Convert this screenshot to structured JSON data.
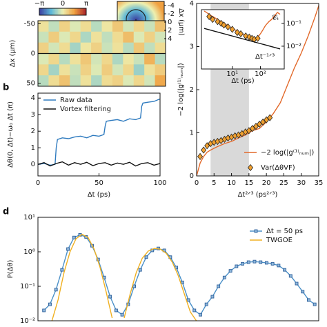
{
  "chart_data": [
    {
      "type": "heatmap",
      "ylabel": "Δx (μm)",
      "ylim": [
        -55,
        55
      ],
      "yticks": [
        -50,
        0,
        50
      ],
      "colorbar_ticks": [
        {
          "value": -3.1416,
          "label": "−π"
        },
        {
          "value": 0,
          "label": "0"
        },
        {
          "value": 3.1416,
          "label": "π"
        }
      ],
      "values": [
        [
          0.3,
          -0.5,
          0.6,
          -0.2,
          0.4,
          -0.6,
          0.2,
          0.8,
          -0.3,
          0.5,
          -0.4,
          0.9
        ],
        [
          -0.4,
          0.7,
          -0.2,
          0.5,
          -0.7,
          0.3,
          -0.5,
          0.4,
          1.0,
          -0.2,
          0.6,
          -0.3
        ],
        [
          0.6,
          -0.3,
          0.4,
          -0.8,
          0.2,
          0.6,
          -0.4,
          0.3,
          -0.6,
          0.8,
          -0.5,
          0.4
        ],
        [
          -0.2,
          0.5,
          -0.6,
          0.3,
          0.8,
          -0.3,
          0.5,
          -0.7,
          0.2,
          -0.4,
          1.2,
          -0.6
        ],
        [
          0.5,
          -0.8,
          0.3,
          -0.4,
          0.6,
          -0.2,
          0.7,
          -0.3,
          0.5,
          -0.9,
          0.3,
          0.7
        ],
        [
          -0.6,
          0.4,
          0.9,
          -0.5,
          0.3,
          -0.7,
          0.4,
          0.6,
          -0.2,
          0.5,
          -0.3,
          1.4
        ]
      ],
      "inset": {
        "ylabel": "Δx (μm)",
        "yticks": [
          -4,
          -2,
          0,
          2,
          4
        ]
      }
    },
    {
      "type": "line",
      "panel_label": "b",
      "xlabel": "Δt (ps)",
      "ylabel": "Δθ(0, Δt)−ω₀ Δt (π)",
      "xlim": [
        0,
        100
      ],
      "xticks": [
        0,
        50,
        100
      ],
      "ylim": [
        -0.7,
        4.3
      ],
      "yticks": [
        0,
        1,
        2,
        3,
        4
      ],
      "legend": "upper left",
      "series": [
        {
          "name": "Raw data",
          "color": "#2f7bbf",
          "kind": "line",
          "x": [
            0,
            5,
            10,
            14,
            15,
            16,
            20,
            25,
            30,
            35,
            40,
            45,
            50,
            54,
            55,
            56,
            60,
            65,
            70,
            75,
            80,
            84,
            85,
            86,
            90,
            95,
            100
          ],
          "values": [
            0,
            0.05,
            -0.05,
            0,
            1.0,
            1.5,
            1.6,
            1.55,
            1.65,
            1.7,
            1.6,
            1.75,
            1.7,
            1.8,
            2.3,
            2.6,
            2.65,
            2.7,
            2.6,
            2.75,
            2.7,
            2.8,
            3.5,
            3.7,
            3.75,
            3.8,
            3.95
          ]
        },
        {
          "name": "Vortex filtering",
          "color": "#111111",
          "kind": "line",
          "x": [
            0,
            5,
            10,
            15,
            20,
            25,
            30,
            35,
            40,
            45,
            50,
            55,
            60,
            65,
            70,
            75,
            80,
            85,
            90,
            95,
            100
          ],
          "values": [
            0,
            0.1,
            -0.1,
            0.05,
            0.15,
            -0.05,
            0.1,
            0,
            0.12,
            -0.08,
            0.05,
            0.1,
            -0.05,
            0.08,
            0,
            0.12,
            -0.1,
            0.05,
            0.1,
            -0.05,
            0.05
          ]
        }
      ]
    },
    {
      "type": "line",
      "xlabel": "Δt²ᐟ³ (ps²ᐟ³)",
      "ylabel": "−2 log(|g⁽¹⁾ₙᵤₘ|)",
      "xlim": [
        0,
        35
      ],
      "xticks": [
        0,
        5,
        10,
        15,
        20,
        25,
        30,
        35
      ],
      "ylim": [
        0,
        4
      ],
      "yticks": [
        0,
        1,
        2,
        3,
        4
      ],
      "shaded_span": [
        4,
        15
      ],
      "legend": "lower right",
      "series": [
        {
          "name": "−2 log(|g⁽¹⁾ₙᵤₘ|)",
          "color": "#e2692a",
          "kind": "line",
          "x": [
            0,
            1,
            2,
            3,
            4,
            6,
            8,
            10,
            12,
            14,
            16,
            18,
            20,
            22,
            24,
            26,
            28,
            30,
            32,
            34,
            35
          ],
          "values": [
            0,
            0.3,
            0.45,
            0.55,
            0.6,
            0.68,
            0.75,
            0.8,
            0.88,
            0.95,
            1.05,
            1.1,
            1.25,
            1.45,
            1.7,
            2.1,
            2.5,
            2.85,
            3.25,
            3.7,
            3.95
          ]
        },
        {
          "name": "Var(ΔθVF)",
          "color": "#f0a030",
          "kind": "scatter",
          "marker": "diamond",
          "x": [
            1,
            2,
            3,
            4,
            5,
            6,
            7,
            8,
            9,
            10,
            11,
            12,
            13,
            14,
            15,
            16,
            17,
            18,
            19,
            20,
            21
          ],
          "values": [
            0.45,
            0.6,
            0.7,
            0.75,
            0.78,
            0.8,
            0.82,
            0.85,
            0.88,
            0.9,
            0.93,
            0.95,
            0.98,
            1.02,
            1.05,
            1.1,
            1.15,
            1.2,
            1.25,
            1.3,
            1.35
          ]
        }
      ]
    },
    {
      "type": "line",
      "xscale": "log",
      "yscale": "log",
      "yaxis_side": "right",
      "xlabel": "Δt (ps)",
      "xlim": [
        0.8,
        700
      ],
      "xticks": [
        {
          "value": 10,
          "label": "10¹"
        },
        {
          "value": 100,
          "label": "10²"
        }
      ],
      "ylim": [
        0.001,
        0.4
      ],
      "yticks": [
        {
          "value": 0.1,
          "label": "10⁻¹"
        },
        {
          "value": 0.01,
          "label": "10⁻²"
        }
      ],
      "annotations": [
        "𝒞ₜ",
        "Δt⁻¹ᐟ³"
      ],
      "series": [
        {
          "color": "#e2692a",
          "kind": "line",
          "x": [
            1,
            2,
            3,
            5,
            7,
            10,
            15,
            20,
            30,
            40,
            50,
            60,
            80,
            100,
            120,
            150,
            200,
            250,
            300,
            400,
            500
          ],
          "values": [
            0.35,
            0.2,
            0.15,
            0.1,
            0.08,
            0.06,
            0.045,
            0.035,
            0.03,
            0.025,
            0.022,
            0.02,
            0.025,
            0.035,
            0.05,
            0.08,
            0.12,
            0.15,
            0.2,
            0.3,
            0.25
          ]
        },
        {
          "color": "#f0a030",
          "kind": "scatter",
          "marker": "diamond",
          "x": [
            1.5,
            2,
            3,
            4,
            5,
            7,
            10,
            15,
            20,
            30,
            40,
            50,
            60,
            80
          ],
          "values": [
            0.2,
            0.15,
            0.12,
            0.1,
            0.085,
            0.07,
            0.055,
            0.04,
            0.035,
            0.028,
            0.025,
            0.022,
            0.02,
            0.022
          ]
        },
        {
          "color": "#111111",
          "kind": "line",
          "x": [
            1,
            500
          ],
          "values": [
            0.06,
            0.0076
          ]
        }
      ]
    },
    {
      "type": "line",
      "panel_label": "d",
      "ylabel": "P(Δθ)",
      "yscale": "log",
      "xlim": [
        0,
        7
      ],
      "ylim": [
        0.01,
        10
      ],
      "yticks": [
        {
          "value": 0.01,
          "label": "10⁻²"
        },
        {
          "value": 0.1,
          "label": "10⁻¹"
        },
        {
          "value": 1,
          "label": "10⁰"
        },
        {
          "value": 10,
          "label": "10¹"
        }
      ],
      "legend": "upper right",
      "series": [
        {
          "name": "Δt = 50 ps",
          "color": "#2d5f9a",
          "kind": "line+marker",
          "marker": "square",
          "x": [
            0.15,
            0.3,
            0.45,
            0.6,
            0.75,
            0.9,
            1.05,
            1.2,
            1.35,
            1.5,
            1.65,
            1.8,
            1.95,
            2.1,
            2.25,
            2.4,
            2.55,
            2.7,
            2.85,
            3.0,
            3.15,
            3.3,
            3.45,
            3.6,
            3.75,
            3.9,
            4.05,
            4.2,
            4.35,
            4.5,
            4.65,
            4.8,
            4.95,
            5.1,
            5.25,
            5.4,
            5.55,
            5.7,
            5.85,
            6.0,
            6.15,
            6.3,
            6.45,
            6.6,
            6.75,
            6.9
          ],
          "values": [
            0.02,
            0.03,
            0.08,
            0.3,
            1.2,
            2.6,
            3.1,
            2.7,
            1.5,
            0.6,
            0.18,
            0.05,
            0.02,
            0.015,
            0.03,
            0.1,
            0.3,
            0.7,
            1.1,
            1.25,
            1.1,
            0.7,
            0.35,
            0.13,
            0.04,
            0.02,
            0.015,
            0.03,
            0.05,
            0.1,
            0.18,
            0.28,
            0.38,
            0.45,
            0.5,
            0.52,
            0.5,
            0.48,
            0.45,
            0.4,
            0.3,
            0.2,
            0.12,
            0.07,
            0.04,
            0.03
          ]
        },
        {
          "name": "TWGOE",
          "color": "#f0b020",
          "kind": "line",
          "x": [
            0.35,
            0.5,
            0.65,
            0.8,
            0.95,
            1.1,
            1.25,
            1.4,
            1.55,
            1.7,
            1.85,
            2.0,
            2.15,
            2.3,
            2.45,
            2.6,
            2.75,
            2.9,
            3.05,
            3.2,
            3.35,
            3.5,
            3.65,
            3.8,
            3.95
          ],
          "values": [
            0.01,
            0.04,
            0.25,
            1.0,
            2.4,
            3.2,
            2.6,
            1.2,
            0.35,
            0.07,
            0.012,
            null,
            0.012,
            0.06,
            0.25,
            0.65,
            1.05,
            1.25,
            1.2,
            0.9,
            0.5,
            0.2,
            0.06,
            0.018,
            0.01
          ]
        }
      ]
    }
  ]
}
